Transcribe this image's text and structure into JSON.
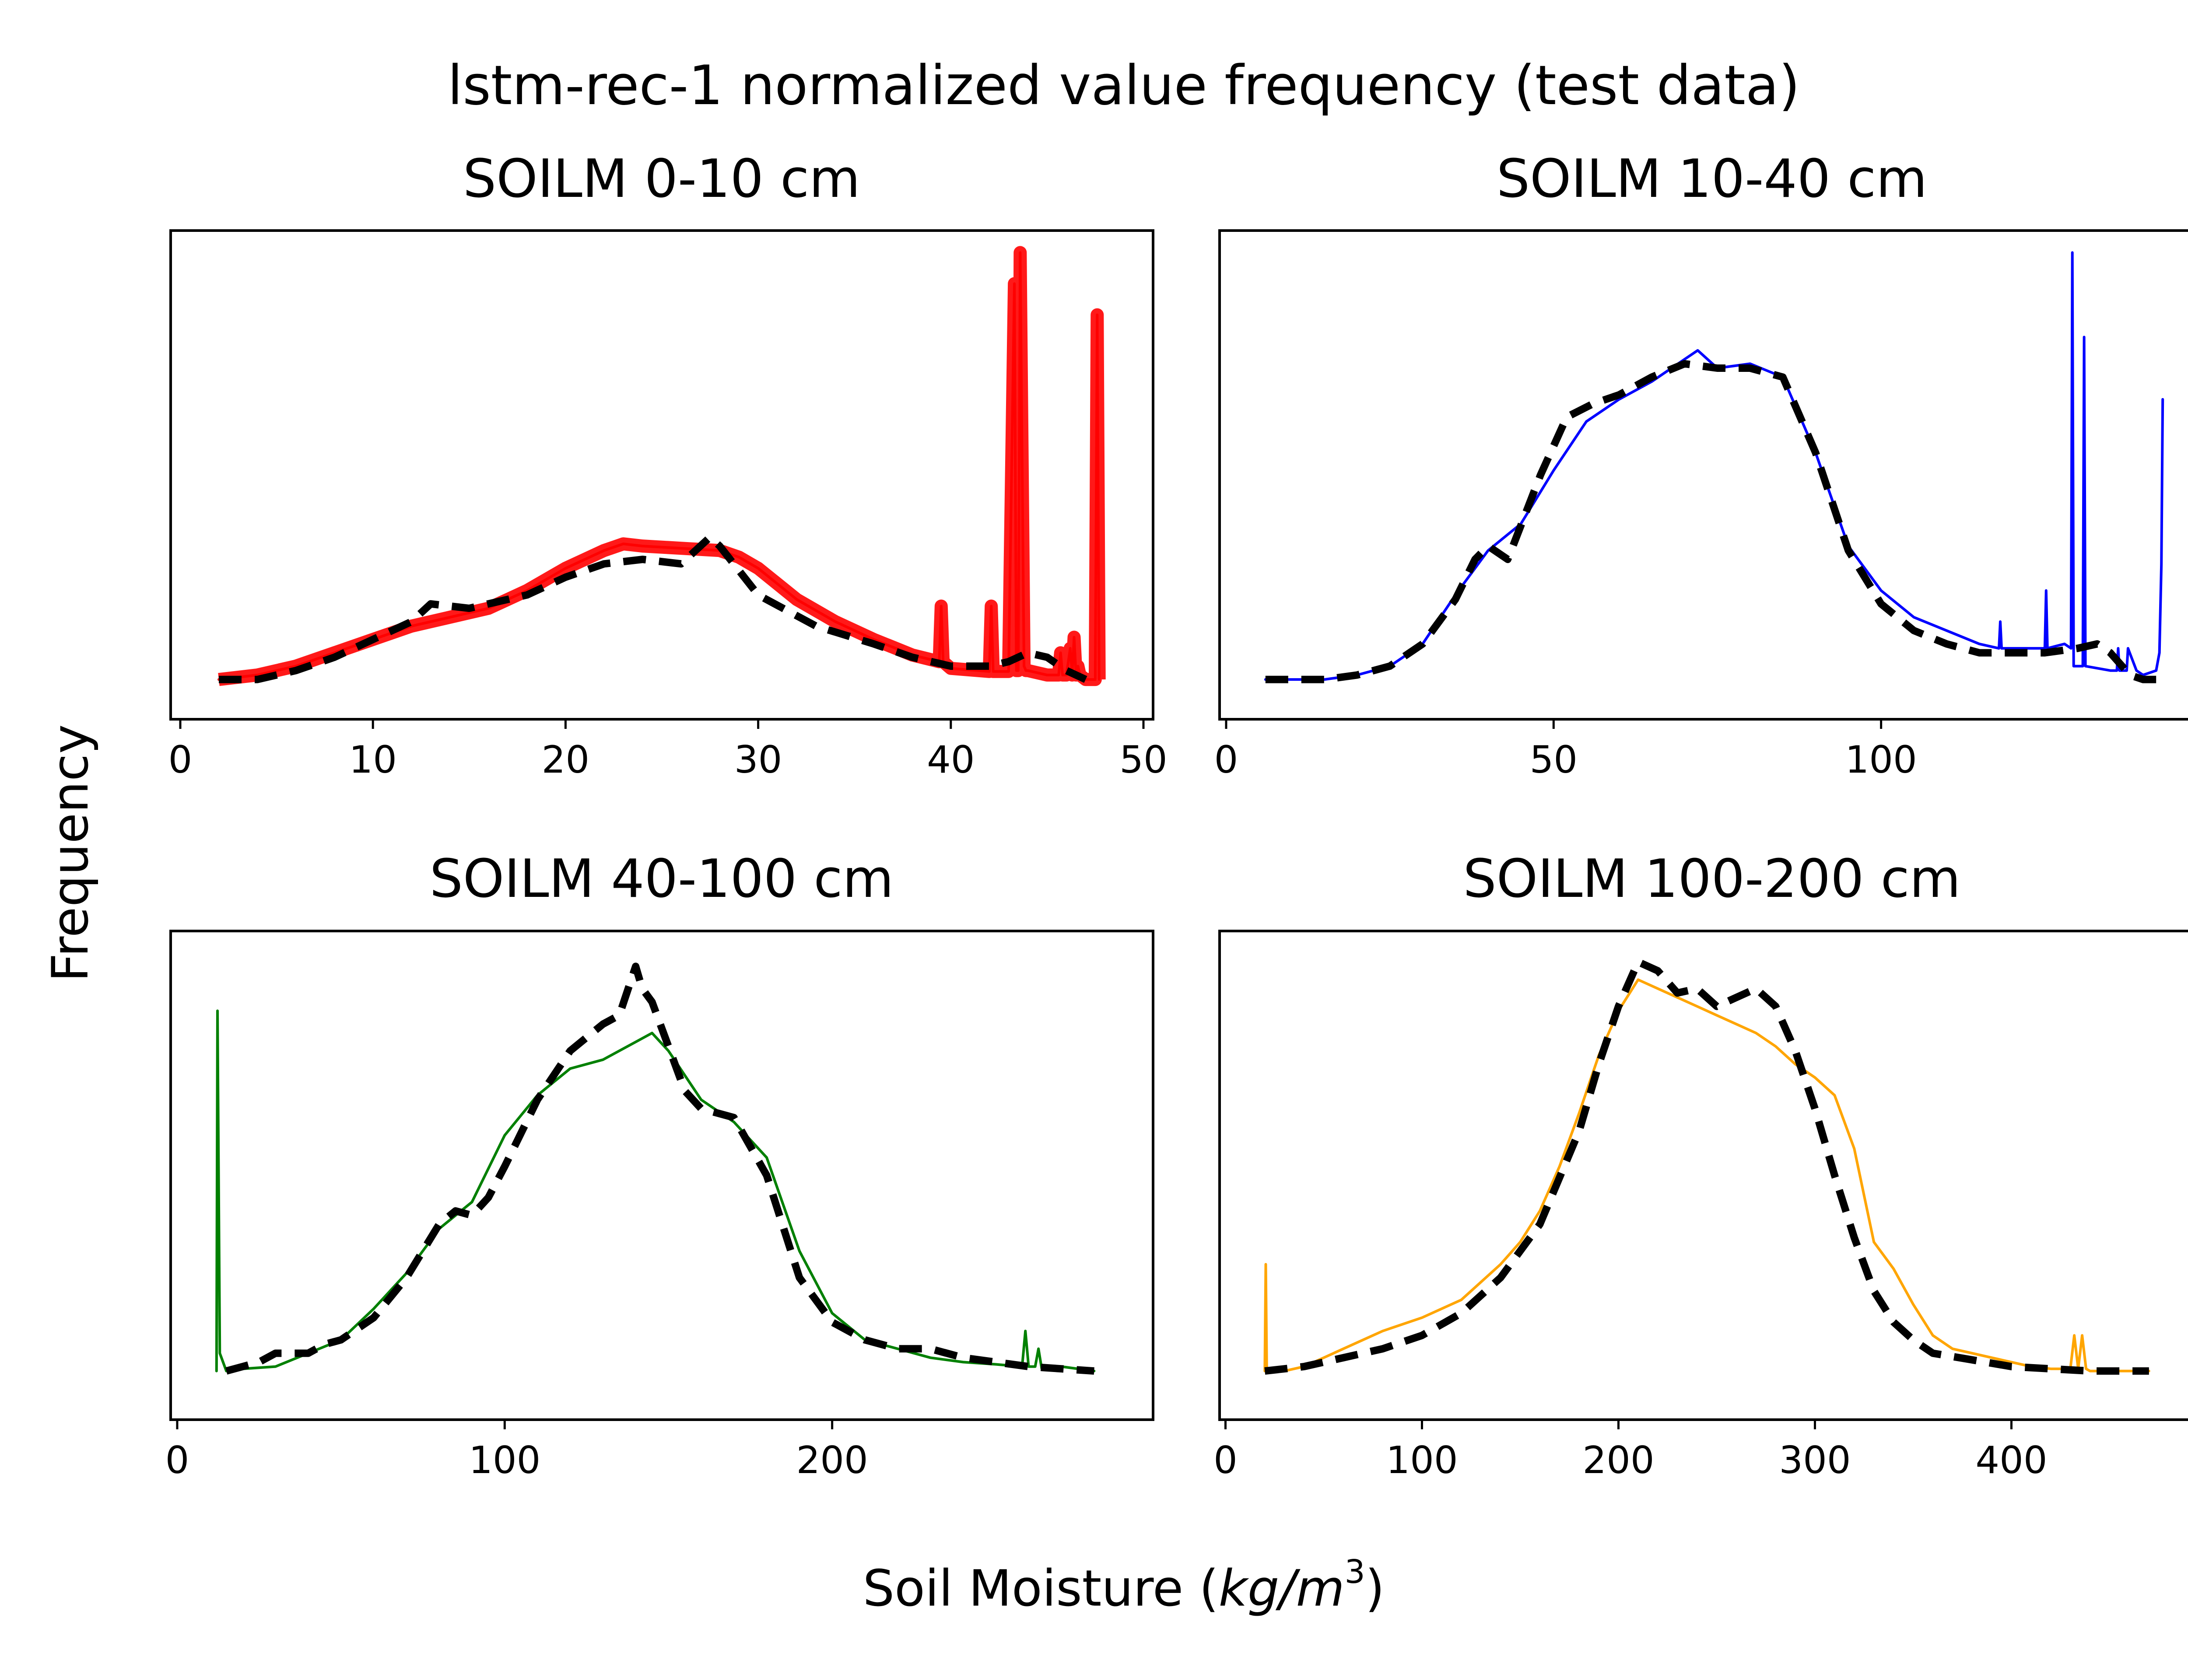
{
  "title": "lstm-rec-1 normalized value frequency (test data)",
  "ylabel": "Frequency",
  "xlabel": "Soil Moisture (kg/m³)",
  "xlabel_parts": {
    "prefix": "Soil Moisture (",
    "unit": "kg/m",
    "exp": "3",
    "suffix": ")"
  },
  "chart_data": [
    {
      "type": "line",
      "title": "SOILM 0-10 cm",
      "xlim": [
        -0.5,
        50.5
      ],
      "xticks": [
        0,
        10,
        20,
        30,
        40,
        50
      ],
      "ylim": [
        0,
        1.0
      ],
      "yticks_visible": false,
      "grid": false,
      "series": [
        {
          "color": "#ff0000",
          "style": "solid",
          "width_band": true,
          "x": [
            2,
            4,
            6,
            8,
            10,
            12,
            14,
            16,
            18,
            20,
            22,
            23,
            24,
            26,
            28,
            29,
            30,
            32,
            34,
            36,
            38,
            39.4,
            39.5,
            39.6,
            40,
            42,
            42.1,
            42.2,
            43,
            43.3,
            43.4,
            43.5,
            43.6,
            43.8,
            43.9,
            44,
            45,
            45.6,
            45.7,
            45.8,
            46,
            46.2,
            46.3,
            46.4,
            46.5,
            46.6,
            46.7,
            47,
            47.5,
            47.6,
            47.7
          ],
          "y": [
            0.04,
            0.05,
            0.07,
            0.1,
            0.13,
            0.16,
            0.18,
            0.2,
            0.24,
            0.29,
            0.33,
            0.345,
            0.34,
            0.335,
            0.33,
            0.315,
            0.29,
            0.22,
            0.17,
            0.13,
            0.095,
            0.08,
            0.205,
            0.08,
            0.065,
            0.058,
            0.205,
            0.058,
            0.058,
            0.93,
            0.06,
            0.06,
            1.0,
            0.07,
            0.06,
            0.06,
            0.05,
            0.05,
            0.1,
            0.05,
            0.05,
            0.11,
            0.05,
            0.135,
            0.05,
            0.07,
            0.05,
            0.04,
            0.04,
            0.86,
            0.04
          ]
        },
        {
          "color": "#000000",
          "style": "dashed",
          "x": [
            2,
            4,
            6,
            8,
            10,
            12,
            13,
            15,
            18,
            20,
            22,
            24,
            26,
            27.5,
            28,
            30,
            33,
            36,
            38,
            40,
            42,
            43,
            44,
            45,
            46,
            47
          ],
          "y": [
            0.04,
            0.04,
            0.06,
            0.09,
            0.13,
            0.17,
            0.21,
            0.2,
            0.23,
            0.27,
            0.3,
            0.31,
            0.3,
            0.36,
            0.34,
            0.23,
            0.16,
            0.12,
            0.09,
            0.07,
            0.07,
            0.08,
            0.1,
            0.09,
            0.06,
            0.04
          ]
        }
      ]
    },
    {
      "type": "line",
      "title": "SOILM 10-40 cm",
      "xlim": [
        -1,
        149
      ],
      "xticks": [
        0,
        50,
        100
      ],
      "ylim": [
        0,
        1.0
      ],
      "yticks_visible": false,
      "grid": false,
      "series": [
        {
          "color": "#0000ff",
          "style": "solid",
          "x": [
            6,
            15,
            20,
            25,
            30,
            35,
            40,
            45,
            50,
            55,
            60,
            65,
            70,
            72,
            75,
            80,
            85,
            90,
            95,
            100,
            105,
            110,
            115,
            118,
            118.2,
            118.4,
            125,
            125.2,
            125.4,
            128,
            129,
            129.2,
            129.4,
            130,
            130.8,
            131,
            131.2,
            135,
            136,
            136.2,
            136.4,
            137,
            137.5,
            137.7,
            139,
            140,
            142,
            142.5,
            142.8,
            143
          ],
          "y": [
            0.04,
            0.04,
            0.05,
            0.07,
            0.12,
            0.23,
            0.33,
            0.39,
            0.51,
            0.62,
            0.67,
            0.71,
            0.76,
            0.78,
            0.74,
            0.75,
            0.72,
            0.55,
            0.34,
            0.24,
            0.18,
            0.15,
            0.12,
            0.11,
            0.17,
            0.11,
            0.11,
            0.24,
            0.11,
            0.12,
            0.11,
            1.0,
            0.07,
            0.07,
            0.07,
            0.81,
            0.07,
            0.06,
            0.06,
            0.11,
            0.06,
            0.06,
            0.06,
            0.11,
            0.06,
            0.05,
            0.06,
            0.1,
            0.3,
            0.67
          ]
        },
        {
          "color": "#000000",
          "style": "dashed",
          "x": [
            6,
            15,
            20,
            25,
            30,
            35,
            38,
            40,
            43,
            48,
            52,
            56,
            60,
            65,
            70,
            75,
            80,
            85,
            90,
            95,
            100,
            105,
            110,
            115,
            120,
            125,
            130,
            133,
            135,
            138,
            140,
            142
          ],
          "y": [
            0.04,
            0.04,
            0.05,
            0.07,
            0.12,
            0.22,
            0.31,
            0.34,
            0.31,
            0.5,
            0.63,
            0.66,
            0.68,
            0.72,
            0.75,
            0.74,
            0.74,
            0.72,
            0.55,
            0.33,
            0.21,
            0.15,
            0.12,
            0.1,
            0.1,
            0.1,
            0.11,
            0.12,
            0.1,
            0.05,
            0.04,
            0.04
          ]
        }
      ]
    },
    {
      "type": "line",
      "title": "SOILM 40-100 cm",
      "xlim": [
        -2,
        298
      ],
      "xticks": [
        0,
        100,
        200
      ],
      "ylim": [
        0,
        1.0
      ],
      "yticks_visible": false,
      "grid": false,
      "series": [
        {
          "color": "#008000",
          "style": "solid",
          "x": [
            12,
            12.3,
            13,
            15,
            20,
            30,
            40,
            50,
            60,
            70,
            80,
            90,
            100,
            110,
            120,
            130,
            140,
            145,
            150,
            160,
            170,
            180,
            190,
            200,
            210,
            220,
            230,
            240,
            250,
            258,
            259,
            260,
            262,
            263,
            264,
            266,
            270,
            280
          ],
          "y": [
            0.06,
            0.87,
            0.1,
            0.06,
            0.065,
            0.07,
            0.1,
            0.13,
            0.2,
            0.28,
            0.38,
            0.44,
            0.59,
            0.68,
            0.74,
            0.76,
            0.8,
            0.82,
            0.78,
            0.67,
            0.62,
            0.54,
            0.33,
            0.19,
            0.13,
            0.11,
            0.09,
            0.08,
            0.075,
            0.07,
            0.15,
            0.07,
            0.07,
            0.11,
            0.065,
            0.07,
            0.07,
            0.06
          ]
        },
        {
          "color": "#000000",
          "style": "dashed",
          "x": [
            15,
            20,
            25,
            30,
            35,
            40,
            45,
            50,
            60,
            70,
            80,
            85,
            90,
            95,
            100,
            110,
            120,
            130,
            135,
            140,
            142,
            145,
            150,
            155,
            160,
            170,
            180,
            190,
            200,
            210,
            220,
            230,
            240,
            250,
            260,
            270,
            280
          ],
          "y": [
            0.06,
            0.07,
            0.08,
            0.1,
            0.1,
            0.1,
            0.12,
            0.13,
            0.18,
            0.27,
            0.39,
            0.42,
            0.41,
            0.45,
            0.52,
            0.67,
            0.78,
            0.84,
            0.86,
            0.97,
            0.92,
            0.89,
            0.79,
            0.69,
            0.65,
            0.63,
            0.5,
            0.27,
            0.17,
            0.13,
            0.11,
            0.11,
            0.09,
            0.08,
            0.07,
            0.065,
            0.06
          ]
        }
      ]
    },
    {
      "type": "line",
      "title": "SOILM 100-200 cm",
      "xlim": [
        -3,
        497
      ],
      "xticks": [
        0,
        100,
        200,
        300,
        400
      ],
      "ylim": [
        0,
        1.0
      ],
      "yticks_visible": false,
      "grid": false,
      "series": [
        {
          "color": "#ffa500",
          "style": "solid",
          "x": [
            20,
            20.5,
            21,
            30,
            40,
            50,
            60,
            80,
            100,
            120,
            130,
            140,
            150,
            160,
            170,
            180,
            190,
            200,
            210,
            220,
            230,
            240,
            250,
            260,
            270,
            280,
            290,
            300,
            310,
            320,
            330,
            340,
            350,
            360,
            370,
            380,
            390,
            400,
            410,
            420,
            430,
            432,
            434,
            436,
            438,
            440,
            450,
            460,
            470
          ],
          "y": [
            0.06,
            0.3,
            0.06,
            0.06,
            0.07,
            0.09,
            0.11,
            0.15,
            0.18,
            0.22,
            0.26,
            0.3,
            0.35,
            0.42,
            0.52,
            0.64,
            0.77,
            0.87,
            0.94,
            0.92,
            0.9,
            0.88,
            0.86,
            0.84,
            0.82,
            0.79,
            0.75,
            0.72,
            0.68,
            0.56,
            0.35,
            0.29,
            0.21,
            0.14,
            0.11,
            0.1,
            0.09,
            0.08,
            0.07,
            0.065,
            0.065,
            0.14,
            0.065,
            0.14,
            0.065,
            0.06,
            0.06,
            0.06,
            0.06
          ]
        },
        {
          "color": "#000000",
          "style": "dashed",
          "x": [
            20,
            40,
            60,
            80,
            100,
            120,
            140,
            160,
            180,
            190,
            200,
            210,
            220,
            230,
            240,
            250,
            260,
            270,
            280,
            290,
            300,
            310,
            320,
            330,
            340,
            350,
            360,
            380,
            400,
            420,
            440,
            460,
            470
          ],
          "y": [
            0.06,
            0.07,
            0.09,
            0.11,
            0.14,
            0.19,
            0.27,
            0.39,
            0.6,
            0.75,
            0.88,
            0.98,
            0.96,
            0.91,
            0.92,
            0.88,
            0.9,
            0.92,
            0.88,
            0.78,
            0.65,
            0.5,
            0.36,
            0.24,
            0.17,
            0.13,
            0.1,
            0.085,
            0.07,
            0.065,
            0.06,
            0.06,
            0.06
          ]
        }
      ]
    }
  ]
}
